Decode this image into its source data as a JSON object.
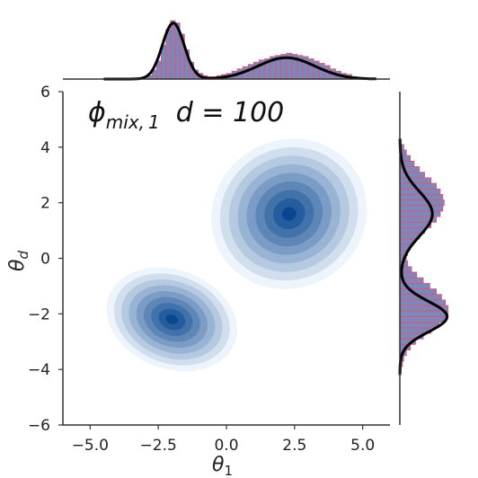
{
  "chart_data": {
    "type": "jointplot-kde",
    "title": "ϕmix,1,  d = 100",
    "title_parts": {
      "phi": "ϕ",
      "sub": "mix, 1",
      "d_eq": "d = 100"
    },
    "xlabel": "θ1",
    "xlabel_parts": {
      "symbol": "θ",
      "sub": "1"
    },
    "ylabel": "θd",
    "ylabel_parts": {
      "symbol": "θ",
      "sub": "d"
    },
    "xlim": [
      -6.0,
      6.0
    ],
    "ylim": [
      -6.0,
      6.0
    ],
    "xticks": [
      -5.0,
      -2.5,
      0.0,
      2.5,
      5.0
    ],
    "xtick_labels": [
      "−5.0",
      "−2.5",
      "0.0",
      "2.5",
      "5.0"
    ],
    "yticks": [
      6,
      4,
      2,
      0,
      -2,
      -4,
      -6
    ],
    "ytick_labels": [
      "6",
      "4",
      "2",
      "0",
      "−2",
      "−4",
      "−6"
    ],
    "grid": false,
    "colors": {
      "contour_light": "#eef4fb",
      "contour_dark": "#08468f",
      "hist_fill": "#7f86b8",
      "hist_edge": "#e0507a",
      "kde_line": "#000000",
      "axis_line": "#333333"
    },
    "joint_kde_modes": [
      {
        "x": -2.0,
        "y": -2.2,
        "weight": 0.5,
        "sx": 0.75,
        "sy": 1.0,
        "rho": 0.25
      },
      {
        "x": 2.3,
        "y": 1.6,
        "weight": 0.5,
        "sx": 1.2,
        "sy": 1.1,
        "rho": 0.15
      }
    ],
    "contour_levels": 9,
    "marginal_x": {
      "kde_modes": [
        {
          "mean": -1.95,
          "sd": 0.4,
          "weight": 0.5
        },
        {
          "mean": 2.2,
          "sd": 1.05,
          "weight": 0.5
        }
      ],
      "hist_bins_x": [
        -2.9,
        -2.73,
        -2.56,
        -2.39,
        -2.22,
        -2.05,
        -1.88,
        -1.71,
        -1.54,
        -1.37,
        -1.2,
        -1.03,
        -0.86,
        -0.69,
        -0.52,
        -0.35,
        -0.18,
        0.0,
        0.2,
        0.4,
        0.6,
        0.8,
        1.0,
        1.2,
        1.4,
        1.6,
        1.8,
        2.0,
        2.2,
        2.4,
        2.6,
        2.8,
        3.0,
        3.2,
        3.4,
        3.6,
        3.8,
        4.0,
        4.2,
        4.4,
        4.6,
        4.8
      ],
      "hist_density": [
        0.03,
        0.08,
        0.16,
        0.3,
        0.44,
        0.52,
        0.5,
        0.4,
        0.26,
        0.15,
        0.08,
        0.05,
        0.03,
        0.02,
        0.02,
        0.03,
        0.04,
        0.05,
        0.07,
        0.09,
        0.11,
        0.13,
        0.15,
        0.17,
        0.18,
        0.2,
        0.21,
        0.22,
        0.23,
        0.22,
        0.21,
        0.2,
        0.18,
        0.16,
        0.14,
        0.12,
        0.09,
        0.07,
        0.05,
        0.04,
        0.02,
        0.01
      ]
    },
    "marginal_y": {
      "kde_modes": [
        {
          "mean": 1.6,
          "sd": 0.8,
          "weight": 0.5
        },
        {
          "mean": -2.1,
          "sd": 0.55,
          "weight": 0.5
        }
      ],
      "hist_bins_y": [
        4.3,
        4.1,
        3.9,
        3.7,
        3.5,
        3.3,
        3.1,
        2.9,
        2.7,
        2.5,
        2.3,
        2.1,
        1.9,
        1.7,
        1.5,
        1.3,
        1.1,
        0.9,
        0.7,
        0.5,
        0.3,
        0.1,
        -0.1,
        -0.3,
        -0.5,
        -0.7,
        -0.9,
        -1.1,
        -1.3,
        -1.5,
        -1.7,
        -1.9,
        -2.1,
        -2.3,
        -2.5,
        -2.7,
        -2.9,
        -3.1,
        -3.3,
        -3.5,
        -3.7,
        -3.9
      ],
      "hist_density": [
        0.01,
        0.03,
        0.05,
        0.08,
        0.11,
        0.15,
        0.19,
        0.24,
        0.28,
        0.31,
        0.33,
        0.34,
        0.33,
        0.31,
        0.28,
        0.24,
        0.19,
        0.15,
        0.11,
        0.08,
        0.06,
        0.05,
        0.06,
        0.09,
        0.13,
        0.18,
        0.23,
        0.28,
        0.32,
        0.35,
        0.37,
        0.37,
        0.35,
        0.3,
        0.24,
        0.18,
        0.12,
        0.08,
        0.05,
        0.03,
        0.02,
        0.01
      ]
    }
  }
}
